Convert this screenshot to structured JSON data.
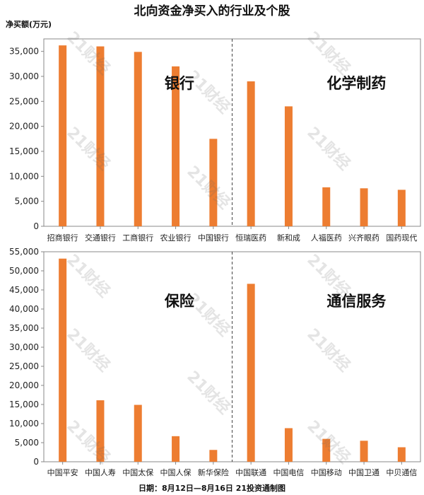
{
  "title": "北向资金净买入的行业及个股",
  "ylabel": "净买额(万元)",
  "footer": "日期：8月12日—8月16日 21投资通制图",
  "watermark": "21财经",
  "colors": {
    "bar": "#ED7D31",
    "axis": "#888888",
    "grid": "#d0d0d0"
  },
  "chart_data": [
    {
      "type": "bar",
      "ylim": [
        0,
        37500
      ],
      "yticks": [
        0,
        5000,
        10000,
        15000,
        20000,
        25000,
        30000,
        35000
      ],
      "groups": [
        {
          "label": "银行",
          "categories": [
            "招商银行",
            "交通银行",
            "工商银行",
            "农业银行",
            "中国银行"
          ],
          "values": [
            36200,
            36000,
            34900,
            32000,
            17500
          ]
        },
        {
          "label": "化学制药",
          "categories": [
            "恒瑞医药",
            "新和成",
            "人福医药",
            "兴齐眼药",
            "国药现代"
          ],
          "values": [
            29000,
            24000,
            7800,
            7600,
            7300
          ]
        }
      ]
    },
    {
      "type": "bar",
      "ylim": [
        0,
        55000
      ],
      "yticks": [
        0,
        5000,
        10000,
        15000,
        20000,
        25000,
        30000,
        35000,
        40000,
        45000,
        50000,
        55000
      ],
      "groups": [
        {
          "label": "保险",
          "categories": [
            "中国平安",
            "中国人寿",
            "中国太保",
            "中国人保",
            "新华保险"
          ],
          "values": [
            53200,
            16100,
            14900,
            6700,
            3100
          ]
        },
        {
          "label": "通信服务",
          "categories": [
            "中国联通",
            "中国电信",
            "中国移动",
            "中国卫通",
            "中贝通信"
          ],
          "values": [
            46600,
            8800,
            6000,
            5500,
            3800
          ]
        }
      ]
    }
  ]
}
